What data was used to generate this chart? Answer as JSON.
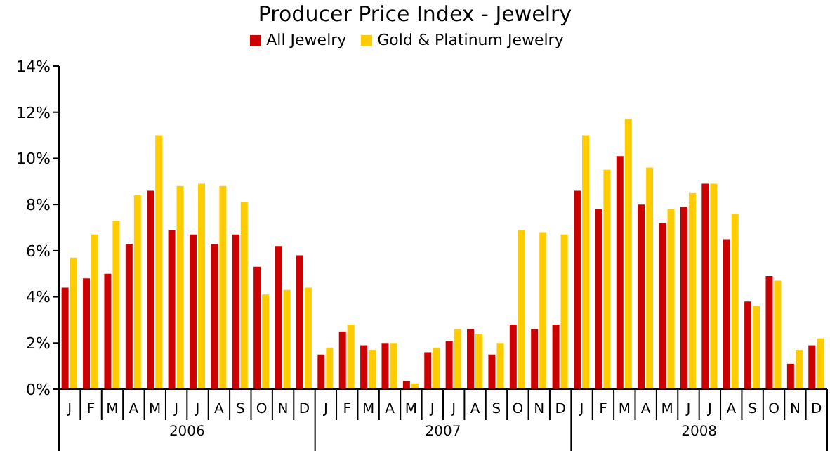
{
  "chart_data": {
    "type": "bar",
    "title": "Producer Price Index - Jewelry",
    "categories": [
      "J",
      "F",
      "M",
      "A",
      "M",
      "J",
      "J",
      "A",
      "S",
      "O",
      "N",
      "D",
      "J",
      "F",
      "M",
      "A",
      "M",
      "J",
      "J",
      "A",
      "S",
      "O",
      "N",
      "D",
      "J",
      "F",
      "M",
      "A",
      "M",
      "J",
      "J",
      "A",
      "S",
      "O",
      "N",
      "D"
    ],
    "annotations": [
      "2006",
      "2007",
      "2008"
    ],
    "series": [
      {
        "name": "All Jewelry",
        "color": "#cc0000",
        "values": [
          4.4,
          4.8,
          5.0,
          6.3,
          8.6,
          6.9,
          6.7,
          6.3,
          6.7,
          5.3,
          6.2,
          5.8,
          1.5,
          2.5,
          1.9,
          2.0,
          0.35,
          1.6,
          2.1,
          2.6,
          1.5,
          2.8,
          2.6,
          2.8,
          8.6,
          7.8,
          10.1,
          8.0,
          7.2,
          7.9,
          8.9,
          6.5,
          3.8,
          4.9,
          1.1,
          1.9
        ]
      },
      {
        "name": "Gold & Platinum Jewelry",
        "color": "#ffcc00",
        "values": [
          5.7,
          6.7,
          7.3,
          8.4,
          11.0,
          8.8,
          8.9,
          8.8,
          8.1,
          4.1,
          4.3,
          4.4,
          1.8,
          2.8,
          1.7,
          2.0,
          0.25,
          1.8,
          2.6,
          2.4,
          2.0,
          6.9,
          6.8,
          6.7,
          11.0,
          9.5,
          11.7,
          9.6,
          7.8,
          8.5,
          8.9,
          7.6,
          3.6,
          4.7,
          1.7,
          2.2
        ]
      }
    ],
    "ylim": [
      0,
      14
    ],
    "yticks": [
      {
        "value": 0,
        "label": "0%"
      },
      {
        "value": 2,
        "label": "2%"
      },
      {
        "value": 4,
        "label": "4%"
      },
      {
        "value": 6,
        "label": "6%"
      },
      {
        "value": 8,
        "label": "8%"
      },
      {
        "value": 10,
        "label": "10%"
      },
      {
        "value": 12,
        "label": "12%"
      },
      {
        "value": 14,
        "label": "14%"
      }
    ],
    "grid": false,
    "legend": "top"
  }
}
